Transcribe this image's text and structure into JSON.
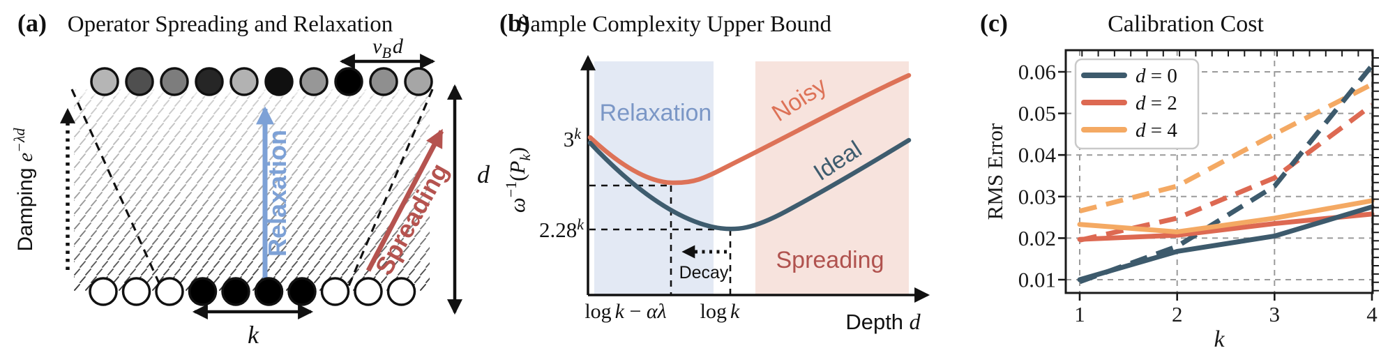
{
  "figure": {
    "caption_labels": {
      "a": "(a)",
      "b": "(b)",
      "c": "(c)"
    }
  },
  "panel_a": {
    "label": "(a)",
    "title": "Operator Spreading and Relaxation",
    "damping": {
      "word": "Damping ",
      "base": "e",
      "exp": "−λd"
    },
    "vbd": {
      "v": "v",
      "sub": "B",
      "d": "d"
    },
    "relaxation_label": "Relaxation",
    "spreading_label": "Spreading",
    "k_label": "k",
    "d_label": "d",
    "colors": {
      "relax_arrow": "#7da1d6",
      "spread_arrow": "#b5534f",
      "hatch": "#1a1a1a"
    },
    "top_circle_shades": [
      "#b5b5b5",
      "#4f4f4f",
      "#7d7d7d",
      "#262626",
      "#b2b2b2",
      "#101010",
      "#979797",
      "#000000",
      "#8f8f8f",
      "#a6a6a6"
    ],
    "bottom_circle_fills": [
      "#ffffff",
      "#ffffff",
      "#ffffff",
      "#000000",
      "#000000",
      "#000000",
      "#000000",
      "#ffffff",
      "#ffffff",
      "#ffffff"
    ]
  },
  "panel_b": {
    "label": "(b)",
    "title": "Sample Complexity Upper Bound",
    "ylabel_parts": {
      "omega": "ω",
      "sup": "−1",
      "open": "(",
      "P": "P",
      "sub": "k",
      "close": ")"
    },
    "ytick_top": {
      "base": "3",
      "sup": "k"
    },
    "ytick_bottom": {
      "base": "2.28",
      "sup": "k"
    },
    "xtick_left_parts": {
      "log": "log",
      "k": "k",
      "minus": " − ",
      "al": "αλ"
    },
    "xtick_right_parts": {
      "log": "log",
      "k": "k"
    },
    "xlabel_parts": {
      "word": "Depth ",
      "var": "d"
    },
    "region_left": "Relaxation",
    "region_right": "Spreading",
    "curve_noisy": "Noisy",
    "curve_ideal": "Ideal",
    "decay_label": "Decay",
    "colors": {
      "noisy": "#dd7257",
      "ideal": "#3e5c6e",
      "relaxation_bg": "#e3e9f4",
      "spreading_bg": "#f7e3dd",
      "relaxation_text": "#7b97c6",
      "spreading_text": "#b0524e"
    }
  },
  "panel_c": {
    "label": "(c)",
    "title": "Calibration Cost",
    "ylabel": "RMS Error",
    "xlabel": "k",
    "yticks_labels": [
      "0.01",
      "0.02",
      "0.03",
      "0.04",
      "0.05",
      "0.06"
    ],
    "xticks_labels": [
      "1",
      "2",
      "3",
      "4"
    ],
    "colors": {
      "d0": "#3d5a6c",
      "d2": "#dd6952",
      "d4": "#f4a963"
    },
    "legend": [
      {
        "var": "d",
        "rest": " = 0",
        "color_key": "d0"
      },
      {
        "var": "d",
        "rest": " = 2",
        "color_key": "d2"
      },
      {
        "var": "d",
        "rest": " = 4",
        "color_key": "d4"
      }
    ]
  },
  "chart_data": [
    {
      "id": "calibration_cost",
      "type": "line",
      "title": "Calibration Cost",
      "xlabel": "k",
      "ylabel": "RMS Error",
      "x": [
        1,
        2,
        3,
        4
      ],
      "xlim": [
        0.86,
        4.01
      ],
      "ylim": [
        0.0068,
        0.0652
      ],
      "yticks": [
        0.01,
        0.02,
        0.03,
        0.04,
        0.05,
        0.06
      ],
      "grid": true,
      "legend_position": "upper-left",
      "series": [
        {
          "name": "d = 4 (dashed)",
          "group": "d = 4",
          "style": "dashed",
          "color": "#f4a963",
          "values": [
            0.0265,
            0.0325,
            0.045,
            0.057
          ]
        },
        {
          "name": "d = 2 (dashed)",
          "group": "d = 2",
          "style": "dashed",
          "color": "#dd6952",
          "values": [
            0.0195,
            0.0248,
            0.0345,
            0.052
          ]
        },
        {
          "name": "d = 0 (dashed)",
          "group": "d = 0",
          "style": "dashed",
          "color": "#3d5a6c",
          "values": [
            0.0095,
            0.018,
            0.0325,
            0.0615
          ]
        },
        {
          "name": "d = 2 (solid)",
          "group": "d = 2",
          "style": "solid",
          "color": "#dd6952",
          "values": [
            0.0197,
            0.0207,
            0.0235,
            0.0258
          ]
        },
        {
          "name": "d = 4 (solid)",
          "group": "d = 4",
          "style": "solid",
          "color": "#f4a963",
          "values": [
            0.0233,
            0.0215,
            0.0248,
            0.029
          ]
        },
        {
          "name": "d = 0 (solid)",
          "group": "d = 0",
          "style": "solid",
          "color": "#3d5a6c",
          "values": [
            0.01,
            0.0168,
            0.0205,
            0.0275
          ]
        }
      ]
    },
    {
      "id": "sample_complexity_schematic",
      "type": "line",
      "title": "Sample Complexity Upper Bound",
      "xlabel": "Depth d",
      "ylabel": "ω⁻¹(P_k)",
      "xtick_labels": [
        "log k − αλ",
        "log k"
      ],
      "ytick_labels": [
        "3^k",
        "2.28^k"
      ],
      "regions": [
        {
          "label": "Relaxation",
          "side": "left",
          "color": "#e3e9f4"
        },
        {
          "label": "Spreading",
          "side": "right",
          "color": "#f7e3dd"
        }
      ],
      "curves": [
        {
          "name": "Noisy",
          "color": "#dd7257",
          "shape": "u-curve, starts at 3^k, minimum at log k − αλ"
        },
        {
          "name": "Ideal",
          "color": "#3e5c6e",
          "shape": "u-curve, starts at 3^k, minimum 2.28^k near log k"
        }
      ],
      "annotations": [
        "Decay"
      ]
    }
  ]
}
